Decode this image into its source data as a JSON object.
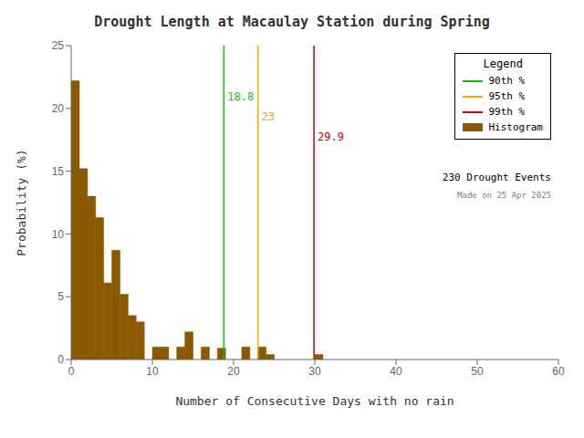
{
  "chart_data": {
    "type": "histogram",
    "title": "Drought Length at Macaulay Station during Spring",
    "x_label": "Number of Consecutive Days with no rain",
    "y_label": "Probability (%)",
    "bins": [
      0,
      1,
      2,
      3,
      4,
      5,
      6,
      7,
      8,
      9,
      10,
      11,
      12,
      13,
      14,
      15,
      16,
      17,
      18,
      19,
      20,
      21,
      22,
      23,
      24,
      25,
      26,
      27,
      28,
      29,
      30,
      31,
      32,
      33,
      34,
      35,
      36,
      37,
      38,
      39,
      40,
      41,
      42,
      43,
      44,
      45,
      46,
      47,
      48,
      49,
      50,
      51,
      52,
      53,
      54,
      55,
      56,
      57,
      58,
      59,
      60
    ],
    "series": [
      {
        "name": "Histogram",
        "color": "#8B5A00",
        "values": [
          22.2,
          15.2,
          13.0,
          11.3,
          6.1,
          8.7,
          5.2,
          3.5,
          3.0,
          0.0,
          1.0,
          1.0,
          0.0,
          1.0,
          2.2,
          0.0,
          1.0,
          0.0,
          0.9,
          0.0,
          0.0,
          1.0,
          0.0,
          1.0,
          0.4,
          0.0,
          0.0,
          0.0,
          0.0,
          0.0,
          0.4,
          0.0,
          0.0,
          0.0,
          0.0,
          0.0,
          0.0,
          0.0,
          0.0,
          0.0,
          0.0,
          0.0,
          0.0,
          0.0,
          0.0,
          0.0,
          0.0,
          0.0,
          0.0,
          0.0,
          0.0,
          0.0,
          0.0,
          0.0,
          0.0,
          0.0,
          0.0,
          0.0,
          0.0,
          0.0
        ]
      }
    ],
    "vlines": [
      {
        "name": "90th %",
        "x": 18.8,
        "color": "#00CC00"
      },
      {
        "name": "95th %",
        "x": 23.0,
        "color": "#FFA500"
      },
      {
        "name": "99th %",
        "x": 29.9,
        "color": "#CC0000"
      }
    ],
    "annotations": [
      "230 Drought Events",
      "Made on 25 Apr 2025"
    ],
    "legend_title": "Legend",
    "legend": "upper right",
    "grid": false,
    "xlim": [
      0,
      60
    ],
    "ylim": [
      0,
      25
    ],
    "xticks": [
      0,
      10,
      20,
      30,
      40,
      50,
      60
    ],
    "yticks": [
      0,
      5,
      10,
      15,
      20,
      25
    ]
  }
}
